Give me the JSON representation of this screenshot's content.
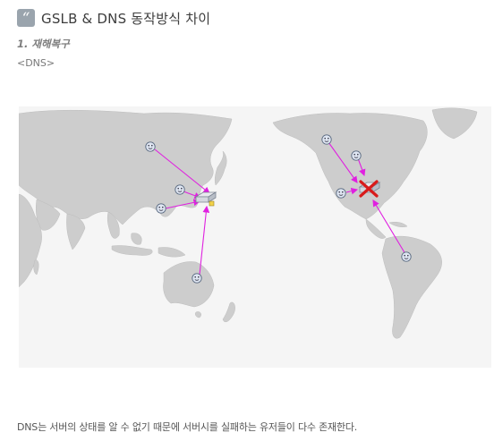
{
  "heading": {
    "icon": "quote-icon",
    "text": "GSLB & DNS 동작방식 차이"
  },
  "section": {
    "title": "1. 재해복구"
  },
  "tag": "<DNS>",
  "map": {
    "background": "#f5f5f5",
    "land_color": "#cdcdcd",
    "arrow_color": "#e020e0",
    "server_icon": "dns-server-icon",
    "failed_marker": "red-x-icon",
    "user_icon": "smiley-user-icon",
    "user_count": 10
  },
  "caption": "DNS는 서버의 상태를  알 수 없기 때문에 서버시를 실패하는 유저들이 다수 존재한다."
}
